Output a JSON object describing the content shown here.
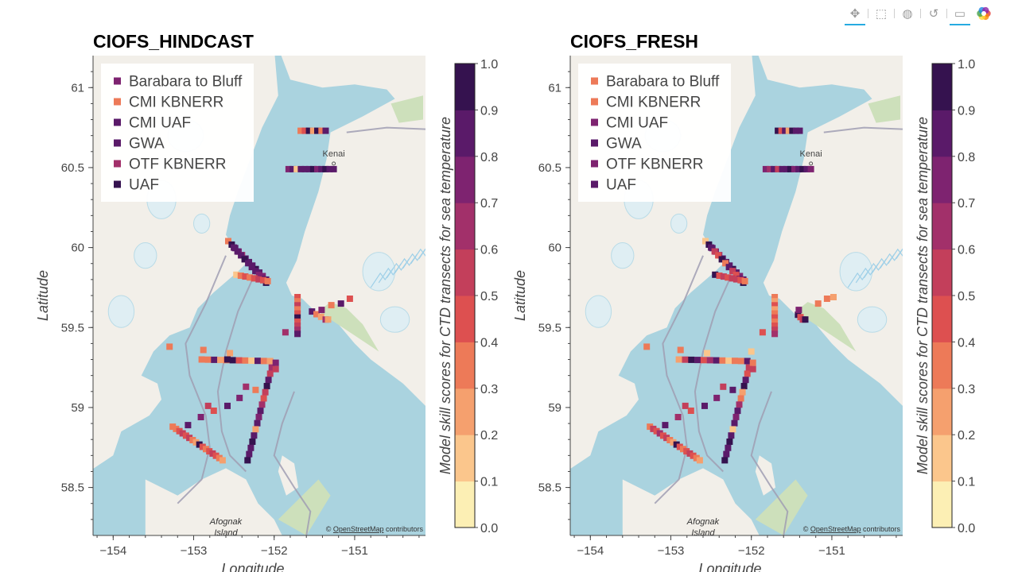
{
  "toolbar": {
    "tools": [
      {
        "name": "pan-tool",
        "icon": "move-icon",
        "glyph": "✥",
        "active": true
      },
      {
        "name": "box-zoom-tool",
        "icon": "box-zoom-icon",
        "glyph": "⬚",
        "active": false
      },
      {
        "name": "hover-tool",
        "icon": "hover-icon",
        "glyph": "◍",
        "active": false
      },
      {
        "name": "reset-tool",
        "icon": "reset-icon",
        "glyph": "↺",
        "active": false
      },
      {
        "name": "tooltip-tool",
        "icon": "comment-icon",
        "glyph": "▭",
        "active": true
      }
    ]
  },
  "colors": {
    "palette": [
      "#fcefb4",
      "#fbc68c",
      "#f5a06e",
      "#ed7a58",
      "#dd5050",
      "#c33f5b",
      "#a2306a",
      "#7e2370",
      "#5a1a69",
      "#35124f"
    ],
    "water": "#aad3df",
    "land": "#f2efe9",
    "forest": "#cde0bb",
    "glacier": "#dfeef3",
    "boundary": "#a09eb3"
  },
  "basemap": {
    "attribution": "OpenStreetMap",
    "attribution_prefix": "© ",
    "attribution_suffix": " contributors",
    "places": [
      {
        "name": "Kenai",
        "lon": -151.26,
        "lat": 60.57
      },
      {
        "name": "Afognak",
        "lon": -152.6,
        "lat": 58.27
      },
      {
        "name": "Island",
        "lon": -152.6,
        "lat": 58.2
      }
    ]
  },
  "chart_data": [
    {
      "type": "scatter",
      "title": "CIOFS_HINDCAST",
      "xlabel": "Longitude",
      "ylabel": "Latitude",
      "colorbar_label": "Model skill scores for CTD transects for sea temperature",
      "xlim": [
        -154.25,
        -150.12
      ],
      "ylim": [
        58.2,
        61.2
      ],
      "xticks": [
        {
          "v": -154,
          "label": "−154"
        },
        {
          "v": -153,
          "label": "−153"
        },
        {
          "v": -152,
          "label": "−152"
        },
        {
          "v": -151,
          "label": "−151"
        }
      ],
      "yticks": [
        {
          "v": 58.5,
          "label": "58.5"
        },
        {
          "v": 59,
          "label": "59"
        },
        {
          "v": 59.5,
          "label": "59.5"
        },
        {
          "v": 60,
          "label": "60"
        },
        {
          "v": 60.5,
          "label": "60.5"
        },
        {
          "v": 61,
          "label": "61"
        }
      ],
      "colorbar_ticks": [
        "0.0",
        "0.1",
        "0.2",
        "0.3",
        "0.4",
        "0.5",
        "0.6",
        "0.7",
        "0.8",
        "0.9",
        "1.0"
      ],
      "legend_position": "top-left",
      "legend": [
        {
          "label": "Barabara to Bluff",
          "value": 0.78
        },
        {
          "label": "CMI KBNERR",
          "value": 0.38
        },
        {
          "label": "CMI UAF",
          "value": 0.85
        },
        {
          "label": "GWA",
          "value": 0.88
        },
        {
          "label": "OTF KBNERR",
          "value": 0.62
        },
        {
          "label": "UAF",
          "value": 0.95
        }
      ],
      "transects": [
        {
          "name": "kenai-north",
          "lon": [
            -151.67,
            -151.36
          ],
          "lat": [
            60.73,
            60.73
          ],
          "n": 7,
          "values": [
            0.35,
            0.4,
            0.9,
            0.2,
            0.92,
            0.35,
            0.85
          ]
        },
        {
          "name": "kenai-south",
          "lon": [
            -151.82,
            -151.26
          ],
          "lat": [
            60.49,
            60.49
          ],
          "n": 12,
          "values": [
            0.75,
            0.8,
            0.15,
            0.85,
            0.88,
            0.82,
            0.9,
            0.78,
            0.85,
            0.92,
            0.8,
            0.88
          ]
        },
        {
          "name": "chinitna",
          "lon": [
            -152.57,
            -152.1
          ],
          "lat": [
            60.04,
            59.8
          ],
          "n": 12,
          "values": [
            0.35,
            0.9,
            0.8,
            0.75,
            0.6,
            0.88,
            0.8,
            0.85,
            0.9,
            0.82,
            0.7,
            0.88
          ]
        },
        {
          "name": "chinitna-2",
          "lon": [
            -152.5,
            -152.1
          ],
          "lat": [
            60.0,
            59.78
          ],
          "n": 10,
          "values": [
            0.85,
            0.88,
            0.82,
            0.9,
            0.8,
            0.85,
            0.8,
            0.7,
            0.85,
            0.9
          ]
        },
        {
          "name": "cape-douglas",
          "lon": [
            -152.47,
            -152.08
          ],
          "lat": [
            59.83,
            59.79
          ],
          "n": 8,
          "values": [
            0.15,
            0.35,
            0.4,
            0.3,
            0.45,
            0.5,
            0.4,
            0.35
          ]
        },
        {
          "name": "kachemak-upper",
          "lon": [
            -151.53,
            -151.36
          ],
          "lat": [
            59.6,
            59.55
          ],
          "n": 4,
          "values": [
            0.8,
            0.35,
            0.2,
            0.6
          ]
        },
        {
          "name": "seldovia",
          "lon": [
            -151.71,
            -151.71
          ],
          "lat": [
            59.69,
            59.46
          ],
          "n": 10,
          "values": [
            0.4,
            0.3,
            0.5,
            0.35,
            0.45,
            0.9,
            0.4,
            0.5,
            0.6,
            0.88
          ]
        },
        {
          "name": "kamishak",
          "lon": [
            -152.9,
            -152.05
          ],
          "lat": [
            59.3,
            59.29
          ],
          "n": 12,
          "values": [
            0.35,
            0.3,
            0.85,
            0.2,
            0.3,
            0.9,
            0.45,
            0.35,
            0.15,
            0.85,
            0.35,
            0.2
          ]
        },
        {
          "name": "shelikof",
          "lon": [
            -152.03,
            -152.33
          ],
          "lat": [
            59.25,
            58.67
          ],
          "n": 16,
          "values": [
            0.6,
            0.55,
            0.88,
            0.9,
            0.5,
            0.4,
            0.6,
            0.82,
            0.7,
            0.85,
            0.2,
            0.8,
            0.9,
            0.85,
            0.88,
            0.9
          ]
        },
        {
          "name": "kodiak-west",
          "lon": [
            -153.26,
            -152.64
          ],
          "lat": [
            58.88,
            58.67
          ],
          "n": 16,
          "values": [
            0.35,
            0.3,
            0.45,
            0.5,
            0.4,
            0.5,
            0.3,
            0.25,
            0.95,
            0.4,
            0.3,
            0.45,
            0.5,
            0.4,
            0.3,
            0.2
          ]
        }
      ],
      "points": [
        {
          "lon": -153.3,
          "lat": 59.38,
          "v": 0.35
        },
        {
          "lon": -152.88,
          "lat": 59.36,
          "v": 0.35
        },
        {
          "lon": -152.55,
          "lat": 59.34,
          "v": 0.2
        },
        {
          "lon": -151.98,
          "lat": 59.24,
          "v": 0.5
        },
        {
          "lon": -152.35,
          "lat": 59.13,
          "v": 0.6
        },
        {
          "lon": -152.23,
          "lat": 59.11,
          "v": 0.3
        },
        {
          "lon": -152.43,
          "lat": 59.06,
          "v": 0.75
        },
        {
          "lon": -152.58,
          "lat": 59.01,
          "v": 0.8
        },
        {
          "lon": -152.82,
          "lat": 59.01,
          "v": 0.5
        },
        {
          "lon": -152.75,
          "lat": 58.98,
          "v": 0.4
        },
        {
          "lon": -152.91,
          "lat": 58.94,
          "v": 0.75
        },
        {
          "lon": -153.07,
          "lat": 58.89,
          "v": 0.88
        },
        {
          "lon": -151.41,
          "lat": 59.61,
          "v": 0.7
        },
        {
          "lon": -151.17,
          "lat": 59.65,
          "v": 0.85
        },
        {
          "lon": -151.06,
          "lat": 59.68,
          "v": 0.4
        },
        {
          "lon": -151.29,
          "lat": 59.64,
          "v": 0.3
        },
        {
          "lon": -151.86,
          "lat": 59.47,
          "v": 0.6
        },
        {
          "lon": -151.33,
          "lat": 59.55,
          "v": 0.2
        },
        {
          "lon": -152.58,
          "lat": 59.3,
          "v": 0.9
        },
        {
          "lon": -151.98,
          "lat": 59.28,
          "v": 0.7
        }
      ]
    },
    {
      "type": "scatter",
      "title": "CIOFS_FRESH",
      "xlabel": "Longitude",
      "ylabel": "Latitude",
      "colorbar_label": "Model skill scores for CTD transects for sea temperature",
      "xlim": [
        -154.25,
        -150.12
      ],
      "ylim": [
        58.2,
        61.2
      ],
      "xticks": [
        {
          "v": -154,
          "label": "−154"
        },
        {
          "v": -153,
          "label": "−153"
        },
        {
          "v": -152,
          "label": "−152"
        },
        {
          "v": -151,
          "label": "−151"
        }
      ],
      "yticks": [
        {
          "v": 58.5,
          "label": "58.5"
        },
        {
          "v": 59,
          "label": "59"
        },
        {
          "v": 59.5,
          "label": "59.5"
        },
        {
          "v": 60,
          "label": "60"
        },
        {
          "v": 60.5,
          "label": "60.5"
        },
        {
          "v": 61,
          "label": "61"
        }
      ],
      "colorbar_ticks": [
        "0.0",
        "0.1",
        "0.2",
        "0.3",
        "0.4",
        "0.5",
        "0.6",
        "0.7",
        "0.8",
        "0.9",
        "1.0"
      ],
      "legend_position": "top-left",
      "legend": [
        {
          "label": "Barabara to Bluff",
          "value": 0.38
        },
        {
          "label": "CMI KBNERR",
          "value": 0.38
        },
        {
          "label": "CMI UAF",
          "value": 0.72
        },
        {
          "label": "GWA",
          "value": 0.88
        },
        {
          "label": "OTF KBNERR",
          "value": 0.72
        },
        {
          "label": "UAF",
          "value": 0.8
        }
      ],
      "transects": [
        {
          "name": "kenai-north",
          "lon": [
            -151.67,
            -151.4
          ],
          "lat": [
            60.73,
            60.73
          ],
          "n": 7,
          "values": [
            0.9,
            0.4,
            0.88,
            0.2,
            0.92,
            0.85,
            0.8
          ]
        },
        {
          "name": "kenai-south",
          "lon": [
            -151.82,
            -151.26
          ],
          "lat": [
            60.49,
            60.49
          ],
          "n": 12,
          "values": [
            0.7,
            0.65,
            0.85,
            0.5,
            0.88,
            0.82,
            0.9,
            0.78,
            0.85,
            0.92,
            0.8,
            0.75
          ]
        },
        {
          "name": "chinitna",
          "lon": [
            -152.57,
            -152.1
          ],
          "lat": [
            60.04,
            59.8
          ],
          "n": 12,
          "values": [
            0.15,
            0.9,
            0.8,
            0.75,
            0.6,
            0.88,
            0.8,
            0.85,
            0.9,
            0.82,
            0.7,
            0.88
          ]
        },
        {
          "name": "chinitna-2",
          "lon": [
            -152.5,
            -152.1
          ],
          "lat": [
            60.0,
            59.78
          ],
          "n": 10,
          "values": [
            0.85,
            0.5,
            0.4,
            0.9,
            0.3,
            0.85,
            0.5,
            0.45,
            0.85,
            0.9
          ]
        },
        {
          "name": "cape-douglas",
          "lon": [
            -152.45,
            -152.08
          ],
          "lat": [
            59.83,
            59.79
          ],
          "n": 8,
          "values": [
            0.9,
            0.4,
            0.5,
            0.45,
            0.55,
            0.5,
            0.4,
            0.35
          ]
        },
        {
          "name": "kachemak-upper",
          "lon": [
            -151.42,
            -151.36
          ],
          "lat": [
            59.58,
            59.55
          ],
          "n": 3,
          "values": [
            0.95,
            0.45,
            0.5
          ]
        },
        {
          "name": "seldovia",
          "lon": [
            -151.71,
            -151.71
          ],
          "lat": [
            59.69,
            59.46
          ],
          "n": 10,
          "values": [
            0.3,
            0.2,
            0.4,
            0.25,
            0.35,
            0.45,
            0.3,
            0.4,
            0.5,
            0.6
          ]
        },
        {
          "name": "kamishak",
          "lon": [
            -152.9,
            -152.05
          ],
          "lat": [
            59.3,
            59.29
          ],
          "n": 12,
          "values": [
            0.25,
            0.5,
            0.9,
            0.8,
            0.4,
            0.6,
            0.85,
            0.35,
            0.15,
            0.3,
            0.35,
            0.8
          ]
        },
        {
          "name": "shelikof",
          "lon": [
            -152.03,
            -152.33
          ],
          "lat": [
            59.25,
            58.67
          ],
          "n": 16,
          "values": [
            0.5,
            0.4,
            0.88,
            0.9,
            0.2,
            0.3,
            0.6,
            0.82,
            0.7,
            0.85,
            0.15,
            0.8,
            0.9,
            0.85,
            0.88,
            0.9
          ]
        },
        {
          "name": "kodiak-west",
          "lon": [
            -153.26,
            -152.64
          ],
          "lat": [
            58.88,
            58.67
          ],
          "n": 16,
          "values": [
            0.35,
            0.5,
            0.45,
            0.6,
            0.4,
            0.5,
            0.3,
            0.25,
            0.95,
            0.4,
            0.3,
            0.45,
            0.5,
            0.4,
            0.3,
            0.2
          ]
        }
      ],
      "points": [
        {
          "lon": -153.3,
          "lat": 59.38,
          "v": 0.35
        },
        {
          "lon": -152.88,
          "lat": 59.36,
          "v": 0.35
        },
        {
          "lon": -152.55,
          "lat": 59.34,
          "v": 0.15
        },
        {
          "lon": -151.98,
          "lat": 59.24,
          "v": 0.5
        },
        {
          "lon": -152.35,
          "lat": 59.13,
          "v": 0.5
        },
        {
          "lon": -152.23,
          "lat": 59.11,
          "v": 0.8
        },
        {
          "lon": -152.43,
          "lat": 59.06,
          "v": 0.75
        },
        {
          "lon": -152.58,
          "lat": 59.01,
          "v": 0.8
        },
        {
          "lon": -152.82,
          "lat": 59.01,
          "v": 0.5
        },
        {
          "lon": -152.75,
          "lat": 58.98,
          "v": 0.4
        },
        {
          "lon": -152.91,
          "lat": 58.94,
          "v": 0.6
        },
        {
          "lon": -153.07,
          "lat": 58.89,
          "v": 0.88
        },
        {
          "lon": -151.41,
          "lat": 59.61,
          "v": 0.7
        },
        {
          "lon": -151.17,
          "lat": 59.65,
          "v": 0.35
        },
        {
          "lon": -151.06,
          "lat": 59.68,
          "v": 0.3
        },
        {
          "lon": -150.98,
          "lat": 59.69,
          "v": 0.2
        },
        {
          "lon": -151.86,
          "lat": 59.47,
          "v": 0.4
        },
        {
          "lon": -151.33,
          "lat": 59.55,
          "v": 0.95
        },
        {
          "lon": -152.0,
          "lat": 59.35,
          "v": 0.15
        },
        {
          "lon": -151.98,
          "lat": 59.28,
          "v": 0.3
        }
      ]
    }
  ]
}
